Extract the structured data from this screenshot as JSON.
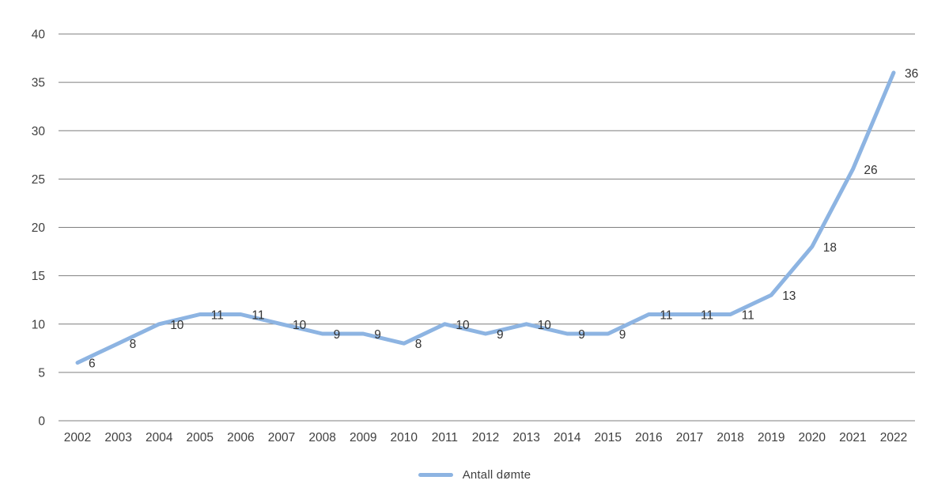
{
  "chart_data": {
    "type": "line",
    "title": "",
    "xlabel": "",
    "ylabel": "",
    "categories": [
      "2002",
      "2003",
      "2004",
      "2005",
      "2006",
      "2007",
      "2008",
      "2009",
      "2010",
      "2011",
      "2012",
      "2013",
      "2014",
      "2015",
      "2016",
      "2017",
      "2018",
      "2019",
      "2020",
      "2021",
      "2022"
    ],
    "series": [
      {
        "name": "Antall dømte",
        "color": "#8db4e2",
        "values": [
          6,
          8,
          10,
          11,
          11,
          10,
          9,
          9,
          8,
          10,
          9,
          10,
          9,
          9,
          11,
          11,
          11,
          13,
          18,
          26,
          36
        ]
      }
    ],
    "ylim": [
      0,
      40
    ],
    "yticks": [
      0,
      5,
      10,
      15,
      20,
      25,
      30,
      35,
      40
    ],
    "grid": true,
    "data_labels": true,
    "legend_position": "bottom"
  },
  "colors": {
    "line": "#8db4e2",
    "grid": "#7f7f7f",
    "text": "#3f3f3f"
  }
}
